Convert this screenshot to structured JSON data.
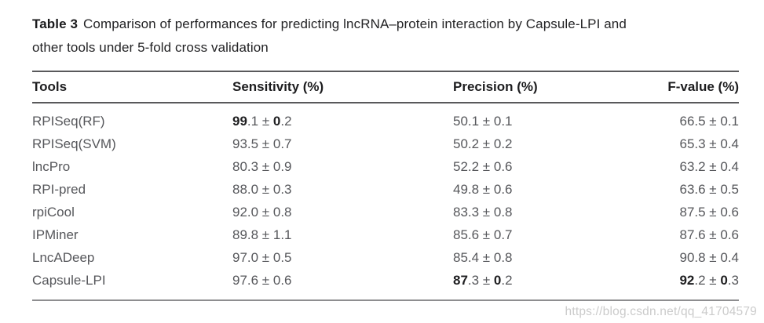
{
  "caption": {
    "label": "Table 3",
    "line1_rest": "Comparison of performances for predicting lncRNA–protein interaction by Capsule-LPI and",
    "line2": "other tools under 5-fold cross validation"
  },
  "table": {
    "columns": [
      "Tools",
      "Sensitivity (%)",
      "Precision (%)",
      "F-value (%)"
    ],
    "rows": [
      {
        "tool": "RPISeq(RF)",
        "sensitivity": [
          {
            "t": "99",
            "b": true
          },
          {
            "t": ".1 ± ",
            "b": false
          },
          {
            "t": "0",
            "b": true
          },
          {
            "t": ".2",
            "b": false
          }
        ],
        "precision": [
          {
            "t": "50.1 ± 0.1",
            "b": false
          }
        ],
        "f_value": [
          {
            "t": "66.5 ± 0.1",
            "b": false
          }
        ]
      },
      {
        "tool": "RPISeq(SVM)",
        "sensitivity": [
          {
            "t": "93.5 ± 0.7",
            "b": false
          }
        ],
        "precision": [
          {
            "t": "50.2 ± 0.2",
            "b": false
          }
        ],
        "f_value": [
          {
            "t": "65.3 ± 0.4",
            "b": false
          }
        ]
      },
      {
        "tool": "lncPro",
        "sensitivity": [
          {
            "t": "80.3 ± 0.9",
            "b": false
          }
        ],
        "precision": [
          {
            "t": "52.2 ± 0.6",
            "b": false
          }
        ],
        "f_value": [
          {
            "t": "63.2 ± 0.4",
            "b": false
          }
        ]
      },
      {
        "tool": "RPI-pred",
        "sensitivity": [
          {
            "t": "88.0 ± 0.3",
            "b": false
          }
        ],
        "precision": [
          {
            "t": "49.8 ± 0.6",
            "b": false
          }
        ],
        "f_value": [
          {
            "t": "63.6 ± 0.5",
            "b": false
          }
        ]
      },
      {
        "tool": "rpiCool",
        "sensitivity": [
          {
            "t": "92.0 ± 0.8",
            "b": false
          }
        ],
        "precision": [
          {
            "t": "83.3 ± 0.8",
            "b": false
          }
        ],
        "f_value": [
          {
            "t": "87.5 ± 0.6",
            "b": false
          }
        ]
      },
      {
        "tool": "IPMiner",
        "sensitivity": [
          {
            "t": "89.8 ± 1.1",
            "b": false
          }
        ],
        "precision": [
          {
            "t": "85.6 ± 0.7",
            "b": false
          }
        ],
        "f_value": [
          {
            "t": "87.6 ± 0.6",
            "b": false
          }
        ]
      },
      {
        "tool": "LncADeep",
        "sensitivity": [
          {
            "t": "97.0 ± 0.5",
            "b": false
          }
        ],
        "precision": [
          {
            "t": "85.4 ± 0.8",
            "b": false
          }
        ],
        "f_value": [
          {
            "t": "90.8 ± 0.4",
            "b": false
          }
        ]
      },
      {
        "tool": "Capsule-LPI",
        "sensitivity": [
          {
            "t": "97.6 ± 0.6",
            "b": false
          }
        ],
        "precision": [
          {
            "t": "87",
            "b": true
          },
          {
            "t": ".3 ± ",
            "b": false
          },
          {
            "t": "0",
            "b": true
          },
          {
            "t": ".2",
            "b": false
          }
        ],
        "f_value": [
          {
            "t": "92",
            "b": true
          },
          {
            "t": ".2 ± ",
            "b": false
          },
          {
            "t": "0",
            "b": true
          },
          {
            "t": ".3",
            "b": false
          }
        ]
      }
    ]
  },
  "watermark": {
    "text": "https://blog.csdn.net/qq_41704579"
  },
  "colors": {
    "heading_text": "#1d1d1f",
    "body_text": "#56575b",
    "bold_value_text": "#1f1f21",
    "rule_dark": "#59595b",
    "rule_light": "#8e8e90",
    "watermark_text": "#cbcbcb"
  }
}
